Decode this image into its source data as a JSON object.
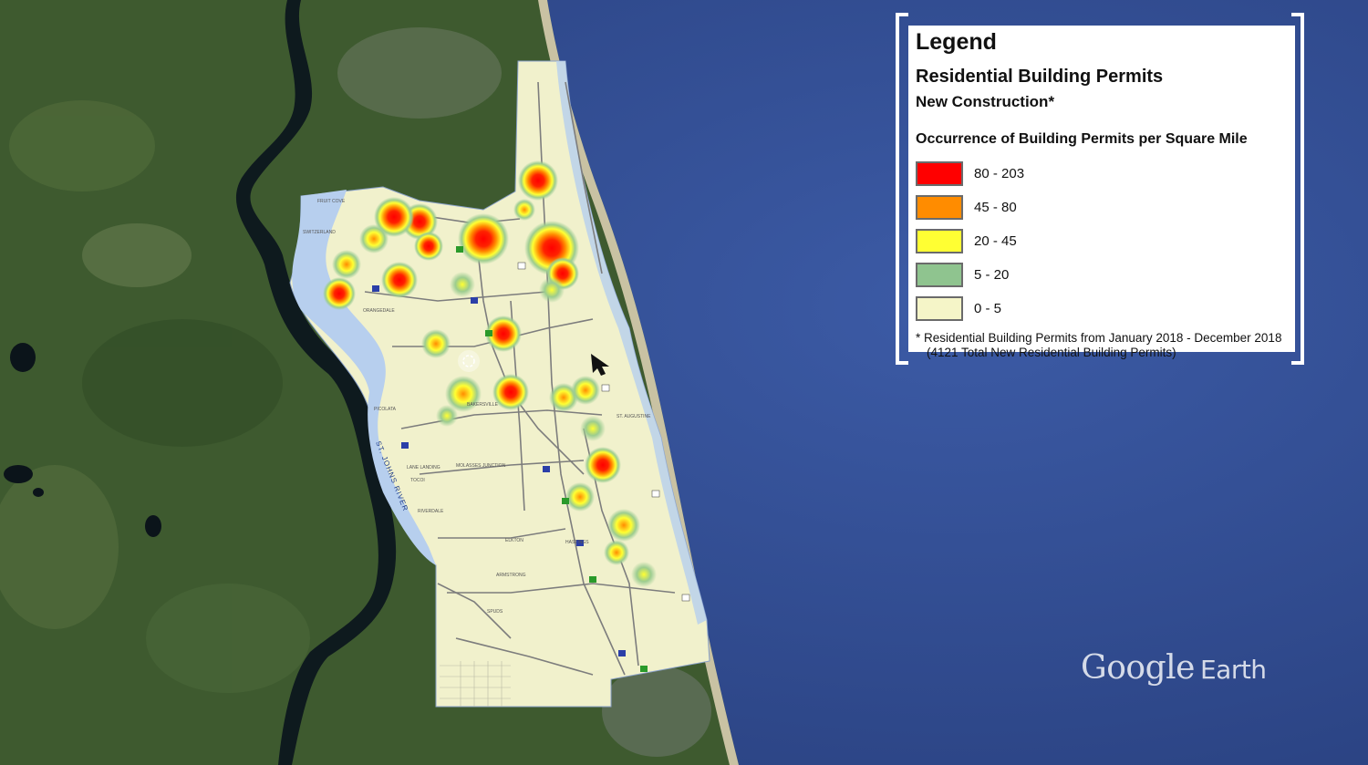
{
  "legend": {
    "title": "Legend",
    "subtitle": "Residential Building Permits",
    "subtitle2": "New Construction*",
    "heading": "Occurrence of Building Permits per Square Mile",
    "classes": [
      {
        "label": "80 - 203",
        "color": "#ff0000"
      },
      {
        "label": "45 - 80",
        "color": "#ff8c00"
      },
      {
        "label": "20 - 45",
        "color": "#ffff33"
      },
      {
        "label": "5 - 20",
        "color": "#8fc48f"
      },
      {
        "label": "0 - 5",
        "color": "#f5f5c8"
      }
    ],
    "note": "* Residential Building Permits from January 2018 - December 2018",
    "note2": "(4121 Total New Residential Building Permits)"
  },
  "watermark": {
    "brand": "Google",
    "product": "Earth"
  },
  "map": {
    "river_label": "ST. JOHNS RIVER",
    "places": [
      "SWITZERLAND",
      "FRUIT COVE",
      "ORANGEDALE",
      "PICOLATA",
      "HASTINGS",
      "ELKTON",
      "ARMSTRONG",
      "SPUDS",
      "ST. AUGUSTINE",
      "BAKERSVILLE",
      "MOLASSES JUNCTION",
      "TOCOI",
      "RIVERDALE",
      "LANE LANDING"
    ],
    "colors": {
      "ocean": "#2f4a8a",
      "land": "#3d5b2e",
      "river": "#0e1a1e",
      "county": "#f1f1cc",
      "water_area": "#b7cfee"
    }
  }
}
